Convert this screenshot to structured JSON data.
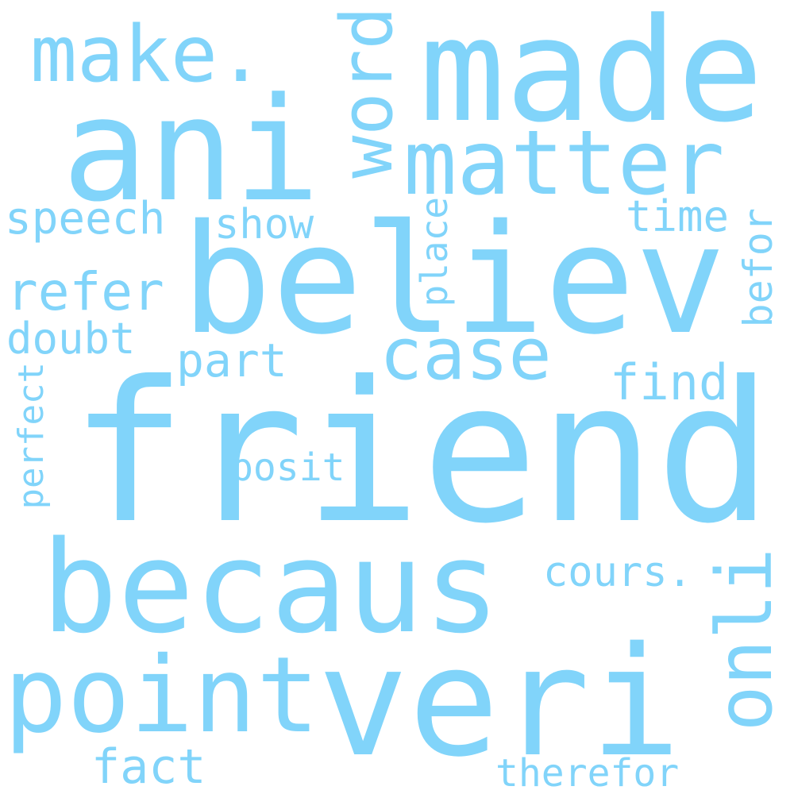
{
  "word_color": "#81D4FA",
  "background_color": "#FFFFFF",
  "words": {
    "friend": "friend",
    "believ": "believ",
    "ani": "ani",
    "made": "made",
    "becaus": "becaus",
    "veri": "veri",
    "point": "point",
    "matter": "matter",
    "make": "make.",
    "word": "word",
    "case": "case",
    "onli": "onli",
    "speech": "speech",
    "show": "show",
    "time": "time",
    "refer": "refer",
    "doubt": "doubt",
    "part": "part",
    "find": "find",
    "befor": "befor",
    "place": "place",
    "perfect": "perfect",
    "posit": "posit",
    "cours": "cours.",
    "fact": "fact",
    "therefor": "therefor"
  }
}
